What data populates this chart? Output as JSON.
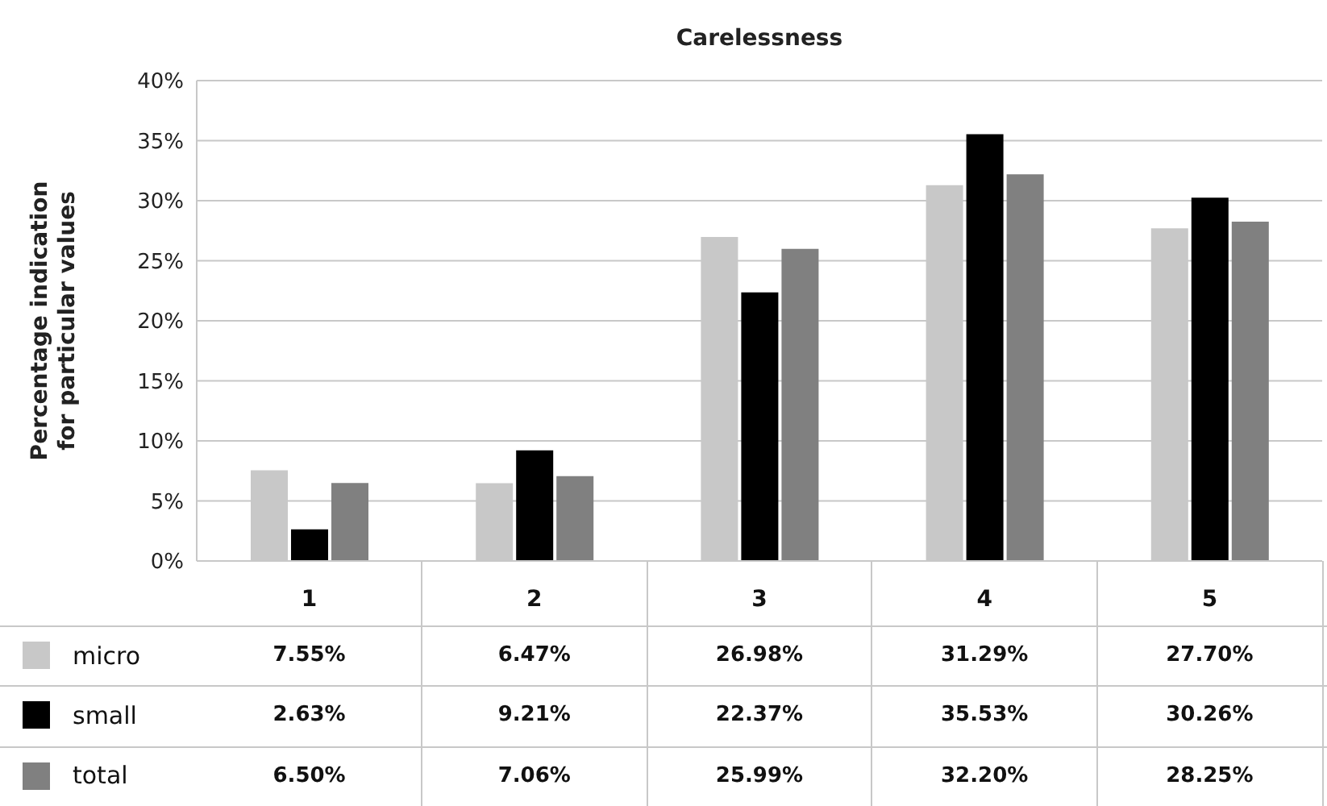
{
  "chart_data": {
    "type": "bar",
    "title": "Carelessness",
    "ylabel": "Percentage indication for particular values",
    "categories": [
      "1",
      "2",
      "3",
      "4",
      "5"
    ],
    "series": [
      {
        "name": "micro",
        "color": "#c8c8c8",
        "values": [
          7.55,
          6.47,
          26.98,
          31.29,
          27.7
        ],
        "value_labels": [
          "7.55%",
          "6.47%",
          "26.98%",
          "31.29%",
          "27.70%"
        ]
      },
      {
        "name": "small",
        "color": "#000000",
        "values": [
          2.63,
          9.21,
          22.37,
          35.53,
          30.26
        ],
        "value_labels": [
          "2.63%",
          "9.21%",
          "22.37%",
          "35.53%",
          "30.26%"
        ]
      },
      {
        "name": "total",
        "color": "#808080",
        "values": [
          6.5,
          7.06,
          25.99,
          32.2,
          28.25
        ],
        "value_labels": [
          "6.50%",
          "7.06%",
          "25.99%",
          "32.20%",
          "28.25%"
        ]
      }
    ],
    "ylim": [
      0,
      40
    ],
    "yticks": [
      {
        "value": 0,
        "label": "0%"
      },
      {
        "value": 5,
        "label": "5%"
      },
      {
        "value": 10,
        "label": "10%"
      },
      {
        "value": 15,
        "label": "15%"
      },
      {
        "value": 20,
        "label": "20%"
      },
      {
        "value": 25,
        "label": "25%"
      },
      {
        "value": 30,
        "label": "30%"
      },
      {
        "value": 35,
        "label": "35%"
      },
      {
        "value": 40,
        "label": "40%"
      }
    ],
    "grid": "y",
    "legend": "bottom left"
  }
}
